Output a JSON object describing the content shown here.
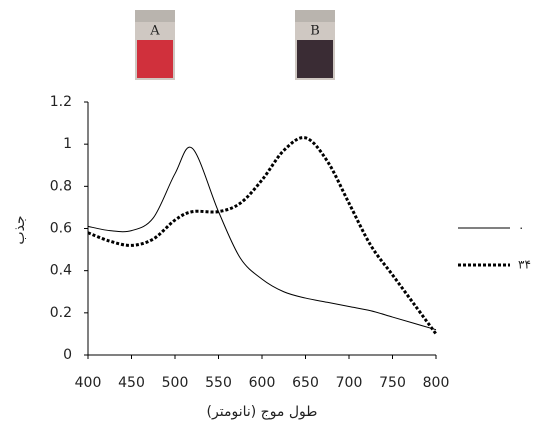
{
  "chart_data": {
    "type": "line",
    "images": [
      {
        "label": "A",
        "color": "#d0303c"
      },
      {
        "label": "B",
        "color": "#3a2c34"
      }
    ],
    "xlabel": "طول موج (نانومتر)",
    "ylabel": "جذب",
    "x": [
      400,
      425,
      450,
      475,
      500,
      520,
      550,
      575,
      600,
      625,
      650,
      675,
      700,
      725,
      750,
      775,
      800
    ],
    "series": [
      {
        "name": "۰",
        "color": "#000000",
        "style": "solid",
        "values": [
          0.61,
          0.59,
          0.59,
          0.65,
          0.86,
          0.98,
          0.68,
          0.46,
          0.36,
          0.3,
          0.27,
          0.25,
          0.23,
          0.21,
          0.18,
          0.15,
          0.12
        ]
      },
      {
        "name": "۳۴",
        "color": "#000000",
        "style": "dotted",
        "values": [
          0.58,
          0.54,
          0.52,
          0.55,
          0.64,
          0.68,
          0.68,
          0.72,
          0.83,
          0.97,
          1.03,
          0.92,
          0.72,
          0.52,
          0.38,
          0.24,
          0.1
        ]
      }
    ],
    "xlim": [
      400,
      800
    ],
    "xticks": [
      400,
      450,
      500,
      550,
      600,
      650,
      700,
      750,
      800
    ],
    "ylim": [
      0,
      1.2
    ],
    "yticks": [
      0,
      0.2,
      0.4,
      0.6,
      0.8,
      1,
      1.2
    ]
  }
}
